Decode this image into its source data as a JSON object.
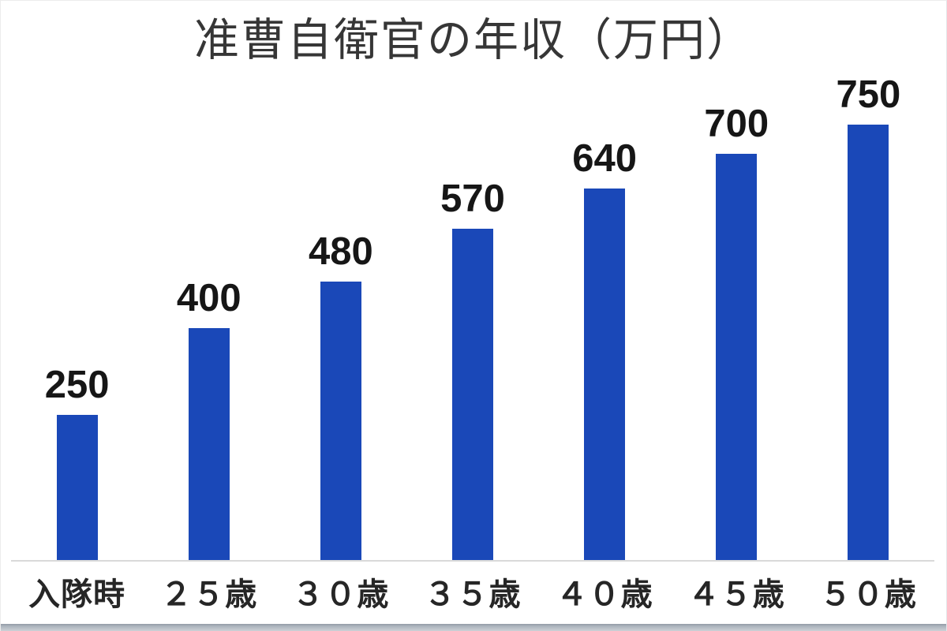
{
  "chart_data": {
    "type": "bar",
    "title": "准曹自衛官の年収（万円）",
    "categories": [
      "入隊時",
      "２５歳",
      "３０歳",
      "３５歳",
      "４０歳",
      "４５歳",
      "５０歳"
    ],
    "values": [
      250,
      400,
      480,
      570,
      640,
      700,
      750
    ],
    "value_labels": [
      "250",
      "400",
      "480",
      "570",
      "640",
      "700",
      "750"
    ],
    "xlabel": "",
    "ylabel": "",
    "ylim": [
      0,
      750
    ],
    "grid": false,
    "legend_position": "none",
    "bar_color": "#1a48b8",
    "value_label_color": "#161616",
    "title_color": "#363636",
    "x_label_color": "#262626",
    "axis_line_color": "#d9d9d9",
    "background_color": "#ffffff"
  }
}
